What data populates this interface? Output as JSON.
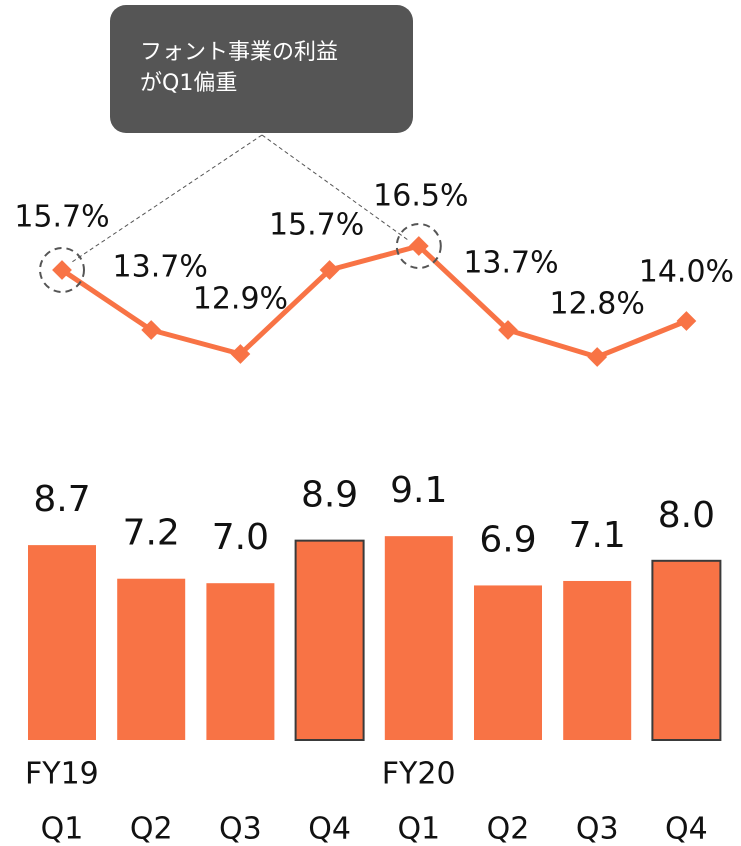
{
  "chart_data": {
    "type": "bar",
    "annotation_lines": [
      "フォント事業の利益",
      "がQ1偏重"
    ],
    "categories": [
      "Q1",
      "Q2",
      "Q3",
      "Q4",
      "Q1",
      "Q2",
      "Q3",
      "Q4"
    ],
    "group_labels": [
      "FY19",
      null,
      null,
      null,
      "FY20",
      null,
      null,
      null
    ],
    "ylim": [
      0,
      10
    ],
    "y2lim": [
      12,
      17
    ],
    "series": [
      {
        "type": "bar",
        "color": "#f87345",
        "edgecolors": [
          null,
          null,
          null,
          "#3a3a3a",
          null,
          null,
          null,
          "#3a3a3a"
        ],
        "values": [
          8.7,
          7.2,
          7.0,
          8.9,
          9.1,
          6.9,
          7.1,
          8.0
        ],
        "value_labels": [
          "8.7",
          "7.2",
          "7.0",
          "8.9",
          "9.1",
          "6.9",
          "7.1",
          "8.0"
        ]
      },
      {
        "type": "line",
        "axis": "y2",
        "color": "#f87345",
        "values": [
          15.7,
          13.7,
          12.9,
          15.7,
          16.5,
          13.7,
          12.8,
          14.0
        ],
        "value_labels": [
          "15.7%",
          "13.7%",
          "12.9%",
          "15.7%",
          "16.5%",
          "13.7%",
          "12.8%",
          "14.0%"
        ]
      }
    ]
  }
}
